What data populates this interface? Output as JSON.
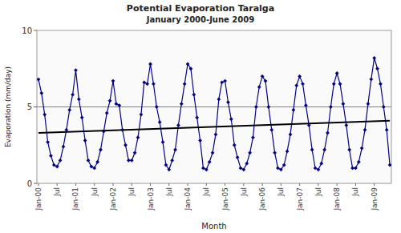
{
  "chart_data": {
    "type": "line",
    "title": "Potential Evaporation Taralga",
    "subtitle": "January 2000-June 2009",
    "x_label": "Month",
    "y_label": "Evaporation (mm/day)",
    "color": "#00008B",
    "marker": "diamond",
    "grid": false,
    "ylim": [
      0,
      10
    ],
    "yticks": [
      0,
      5,
      10
    ],
    "categories": [
      "Jan-00",
      null,
      null,
      null,
      null,
      null,
      "Jul",
      null,
      null,
      null,
      null,
      null,
      "Jan-01",
      null,
      null,
      null,
      null,
      null,
      "Jul",
      null,
      null,
      null,
      null,
      null,
      "Jan-02",
      null,
      null,
      null,
      null,
      null,
      "Jul",
      null,
      null,
      null,
      null,
      null,
      "Jan-03",
      null,
      null,
      null,
      null,
      null,
      "Jul",
      null,
      null,
      null,
      null,
      null,
      "Jan-04",
      null,
      null,
      null,
      null,
      null,
      "Jul",
      null,
      null,
      null,
      null,
      null,
      "Jan-05",
      null,
      null,
      null,
      null,
      null,
      "Jul",
      null,
      null,
      null,
      null,
      null,
      "Jan-06",
      null,
      null,
      null,
      null,
      null,
      "Jul",
      null,
      null,
      null,
      null,
      null,
      "Jan-07",
      null,
      null,
      null,
      null,
      null,
      "Jul",
      null,
      null,
      null,
      null,
      null,
      "Jan-08",
      null,
      null,
      null,
      null,
      null,
      "Jul",
      null,
      null,
      null,
      null,
      null,
      "Jan-09",
      null,
      null,
      null,
      null,
      null
    ],
    "values": [
      6.8,
      5.9,
      4.5,
      2.7,
      1.8,
      1.2,
      1.1,
      1.5,
      2.4,
      3.5,
      4.8,
      5.8,
      7.4,
      5.5,
      4.3,
      2.8,
      1.5,
      1.1,
      1.0,
      1.4,
      2.2,
      3.4,
      4.6,
      5.4,
      6.7,
      5.2,
      5.1,
      3.5,
      2.5,
      1.5,
      1.5,
      2.0,
      3.0,
      4.5,
      6.6,
      6.5,
      7.8,
      6.5,
      5.0,
      4.0,
      2.7,
      1.2,
      0.9,
      1.5,
      2.2,
      3.8,
      5.2,
      6.5,
      7.8,
      7.5,
      5.8,
      4.3,
      2.8,
      1.0,
      0.9,
      1.4,
      2.0,
      3.2,
      5.5,
      6.6,
      6.7,
      5.3,
      4.2,
      2.5,
      1.7,
      1.0,
      0.9,
      1.3,
      2.0,
      3.0,
      5.0,
      6.3,
      7.0,
      6.7,
      5.0,
      3.5,
      2.0,
      1.0,
      0.9,
      1.2,
      2.1,
      3.2,
      4.8,
      6.4,
      7.0,
      6.5,
      5.1,
      3.8,
      2.2,
      1.0,
      0.9,
      1.3,
      2.2,
      3.3,
      5.0,
      6.5,
      7.2,
      6.5,
      5.2,
      3.8,
      2.2,
      1.0,
      1.0,
      1.4,
      2.3,
      3.5,
      5.2,
      6.8,
      8.2,
      7.5,
      6.5,
      5.0,
      3.5,
      1.2
    ],
    "trend_line": {
      "start": 3.3,
      "end": 4.1,
      "color": "#000000"
    },
    "reference_line": {
      "value": 5.0,
      "color": "#808080"
    }
  }
}
